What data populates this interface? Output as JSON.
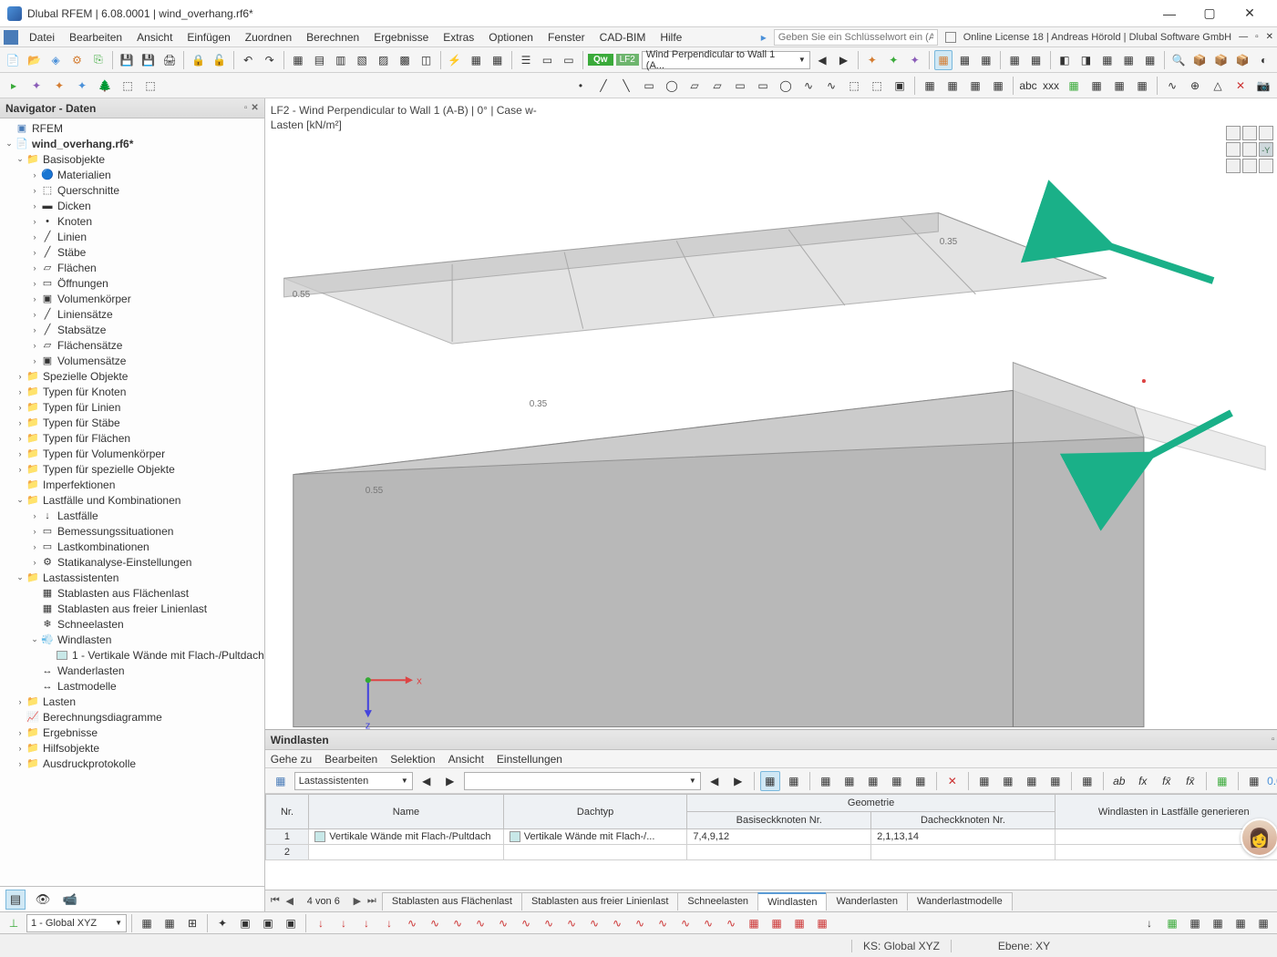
{
  "title": "Dlubal RFEM | 6.08.0001 | wind_overhang.rf6*",
  "menu": [
    "Datei",
    "Bearbeiten",
    "Ansicht",
    "Einfügen",
    "Zuordnen",
    "Berechnen",
    "Ergebnisse",
    "Extras",
    "Optionen",
    "Fenster",
    "CAD-BIM",
    "Hilfe"
  ],
  "keyword_placeholder": "Geben Sie ein Schlüsselwort ein (Alt+Q)",
  "license": "Online License 18 | Andreas Hörold | Dlubal Software GmbH",
  "loadcase_badge": "Qw",
  "loadcase_num": "LF2",
  "loadcase_name": "Wind Perpendicular to Wall 1 (A...",
  "navigator": {
    "title": "Navigator - Daten",
    "root": "RFEM",
    "file": "wind_overhang.rf6*",
    "basisobjekte": "Basisobjekte",
    "basis_children": [
      "Materialien",
      "Querschnitte",
      "Dicken",
      "Knoten",
      "Linien",
      "Stäbe",
      "Flächen",
      "Öffnungen",
      "Volumenkörper",
      "Liniensätze",
      "Stabsätze",
      "Flächensätze",
      "Volumensätze"
    ],
    "spezielle": "Spezielle Objekte",
    "typen": [
      "Typen für Knoten",
      "Typen für Linien",
      "Typen für Stäbe",
      "Typen für Flächen",
      "Typen für Volumenkörper",
      "Typen für spezielle Objekte"
    ],
    "imperfektionen": "Imperfektionen",
    "lastfaelle": "Lastfälle und Kombinationen",
    "lastfaelle_children": [
      "Lastfälle",
      "Bemessungssituationen",
      "Lastkombinationen",
      "Statikanalyse-Einstellungen"
    ],
    "lastassistenten": "Lastassistenten",
    "lastass_children": [
      "Stablasten aus Flächenlast",
      "Stablasten aus freier Linienlast",
      "Schneelasten",
      "Windlasten"
    ],
    "windlasten_sub": "1 - Vertikale Wände mit Flach-/Pultdach",
    "lastass_children2": [
      "Wanderlasten",
      "Lastmodelle"
    ],
    "lasten": "Lasten",
    "rest": [
      "Berechnungsdiagramme",
      "Ergebnisse",
      "Hilfsobjekte",
      "Ausdruckprotokolle"
    ]
  },
  "viewport": {
    "header": "LF2 - Wind Perpendicular to Wall 1 (A-B) | 0° | Case w-",
    "subheader": "Lasten [kN/m²]",
    "load_values": [
      "0.35",
      "0.55",
      "0.35",
      "0.55"
    ],
    "axis_x": "x",
    "axis_z": "z",
    "cube_label": "-Y",
    "arrow_color": "#1ab088"
  },
  "panel": {
    "title": "Windlasten",
    "menu": [
      "Gehe zu",
      "Bearbeiten",
      "Selektion",
      "Ansicht",
      "Einstellungen"
    ],
    "dropdown": "Lastassistenten",
    "columns": {
      "nr": "Nr.",
      "name": "Name",
      "dachtyp": "Dachtyp",
      "geom": "Geometrie",
      "basiseck": "Basiseckknoten Nr.",
      "dacheck": "Dacheckknoten Nr.",
      "generieren": "Windlasten in Lastfälle generieren"
    },
    "rows": [
      {
        "nr": "1",
        "name": "Vertikale Wände mit Flach-/Pultdach",
        "dachtyp": "Vertikale Wände mit Flach-/...",
        "basis": "7,4,9,12",
        "dach": "2,1,13,14"
      },
      {
        "nr": "2",
        "name": "",
        "dachtyp": "",
        "basis": "",
        "dach": ""
      }
    ],
    "pager": "4 von 6",
    "tabs": [
      "Stablasten aus Flächenlast",
      "Stablasten aus freier Linienlast",
      "Schneelasten",
      "Windlasten",
      "Wanderlasten",
      "Wanderlastmodelle"
    ],
    "active_tab": 3
  },
  "status_coord": "1 - Global XYZ",
  "status_ks": "KS: Global XYZ",
  "status_ebene": "Ebene: XY",
  "colors": {
    "accent": "#5a9bd5",
    "arrow": "#1ab088",
    "lf_badge": "#3aaa3a",
    "model_fill": "#c8c8c8",
    "model_edge": "#888"
  }
}
